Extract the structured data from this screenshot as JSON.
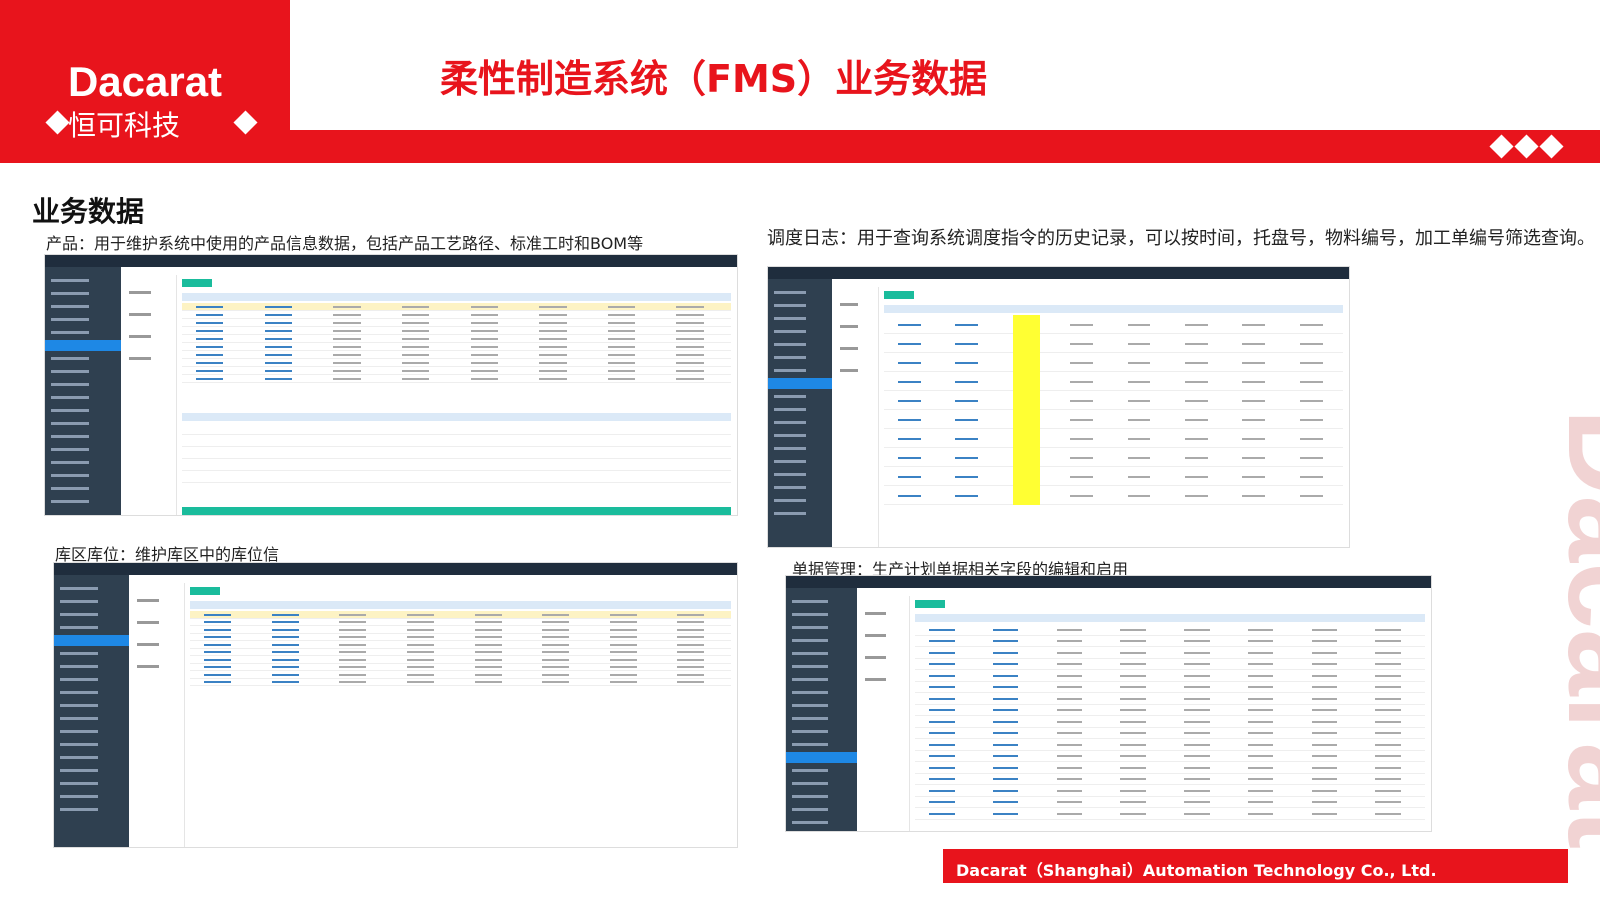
{
  "logo": {
    "name": "Dacarat",
    "tagline": "恒可科技"
  },
  "title": "柔性制造系统（FMS）业务数据",
  "section_title": "业务数据",
  "panels": [
    {
      "caption": "产品：用于维护系统中使用的产品信息数据，包括产品工艺路径、标准工时和BOM等"
    },
    {
      "caption": "调度日志：用于查询系统调度指令的历史记录，可以按时间，托盘号，物料编号，加工单编号筛选查询。"
    },
    {
      "caption": "库区库位：维护库区中的库位信"
    },
    {
      "caption": "单据管理：生产计划单据相关字段的编辑和启用"
    }
  ],
  "footer": "Dacarat（Shanghai）Automation Technology Co., Ltd.",
  "watermark": "Dacarat"
}
